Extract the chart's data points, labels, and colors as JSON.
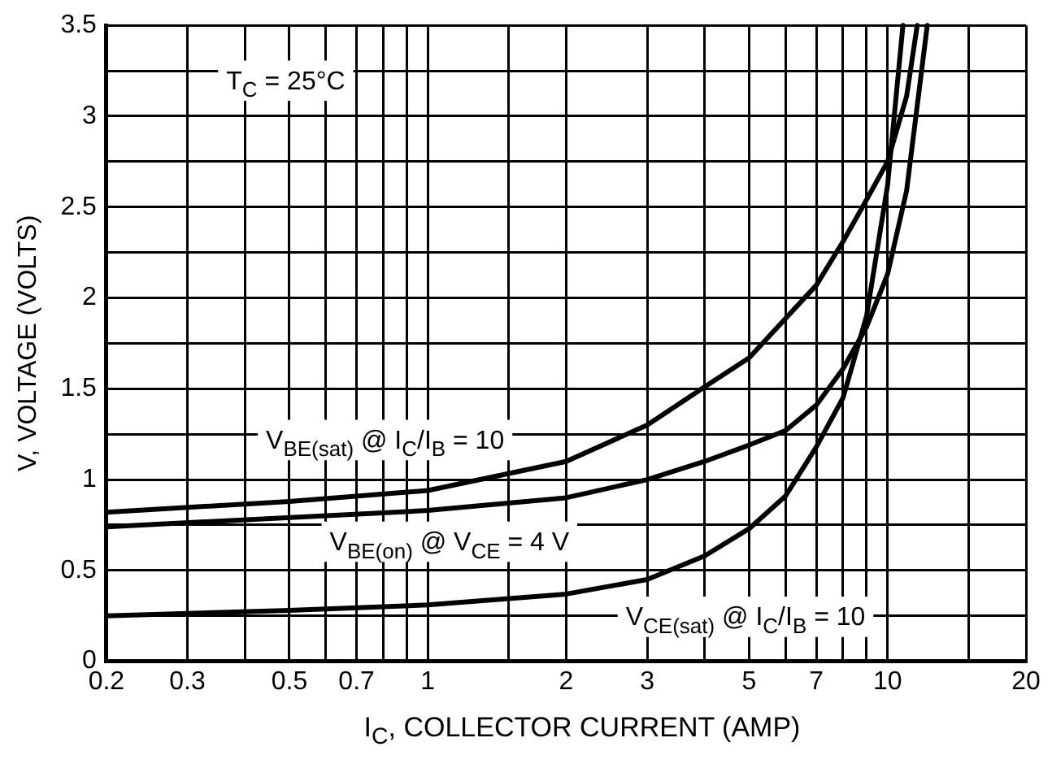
{
  "chart_data": {
    "type": "line",
    "xlabel": "I$_{C}$, COLLECTOR CURRENT (AMP)",
    "ylabel": "V, VOLTAGE (VOLTS)",
    "log": "x",
    "grid": true,
    "legend": false,
    "marker": "none",
    "line_style": "solid",
    "xlim": [
      0.2,
      20
    ],
    "ylim": [
      0,
      3.5
    ],
    "xticks": [
      0.2,
      0.3,
      {
        "value": 0.4,
        "label": null
      },
      0.5,
      {
        "value": 0.6,
        "label": null
      },
      0.7,
      {
        "value": 0.8,
        "label": null
      },
      {
        "value": 0.9,
        "label": null
      },
      1,
      {
        "value": 1.5,
        "label": null
      },
      2,
      3,
      {
        "value": 4,
        "label": null
      },
      5,
      {
        "value": 6,
        "label": null
      },
      7,
      {
        "value": 8,
        "label": null
      },
      {
        "value": 9,
        "label": null
      },
      10,
      {
        "value": 15,
        "label": null
      },
      20
    ],
    "yticks": [
      0,
      {
        "value": 0.25,
        "label": null
      },
      0.5,
      {
        "value": 0.75,
        "label": null
      },
      1,
      {
        "value": 1.25,
        "label": null
      },
      1.5,
      {
        "value": 1.75,
        "label": null
      },
      2,
      {
        "value": 2.25,
        "label": null
      },
      2.5,
      {
        "value": 2.75,
        "label": null
      },
      3,
      {
        "value": 3.25,
        "label": null
      },
      3.5
    ],
    "series": [
      {
        "color": "#000000",
        "x": [
          0.2,
          0.5,
          1,
          2,
          3,
          4,
          5,
          7,
          8,
          9,
          10,
          11,
          11.6
        ],
        "values": [
          0.82,
          0.88,
          0.94,
          1.1,
          1.3,
          1.51,
          1.67,
          2.07,
          2.31,
          2.54,
          2.75,
          3.11,
          3.5
        ]
      },
      {
        "color": "#000000",
        "x": [
          0.2,
          1,
          2,
          3,
          4,
          5,
          6,
          7,
          8,
          9,
          10,
          11,
          12.2
        ],
        "values": [
          0.74,
          0.83,
          0.9,
          1.0,
          1.1,
          1.19,
          1.27,
          1.41,
          1.61,
          1.84,
          2.13,
          2.59,
          3.5
        ]
      },
      {
        "color": "#000000",
        "x": [
          0.2,
          0.5,
          1,
          2,
          3,
          4,
          5,
          6,
          7,
          8,
          9,
          10,
          10.8
        ],
        "values": [
          0.25,
          0.28,
          0.31,
          0.37,
          0.45,
          0.58,
          0.73,
          0.91,
          1.18,
          1.45,
          1.9,
          2.62,
          3.5
        ]
      }
    ],
    "annotations": [
      "T$_{C}$ = 25°C",
      "V$_{BE(sat)}$ @ I$_{C}$/I$_{B}$ = 10",
      "V$_{BE(on)}$ @ V$_{CE}$ = 4 V",
      "V$_{CE(sat)}$ @ I$_{C}$/I$_{B}$ = 10"
    ]
  }
}
